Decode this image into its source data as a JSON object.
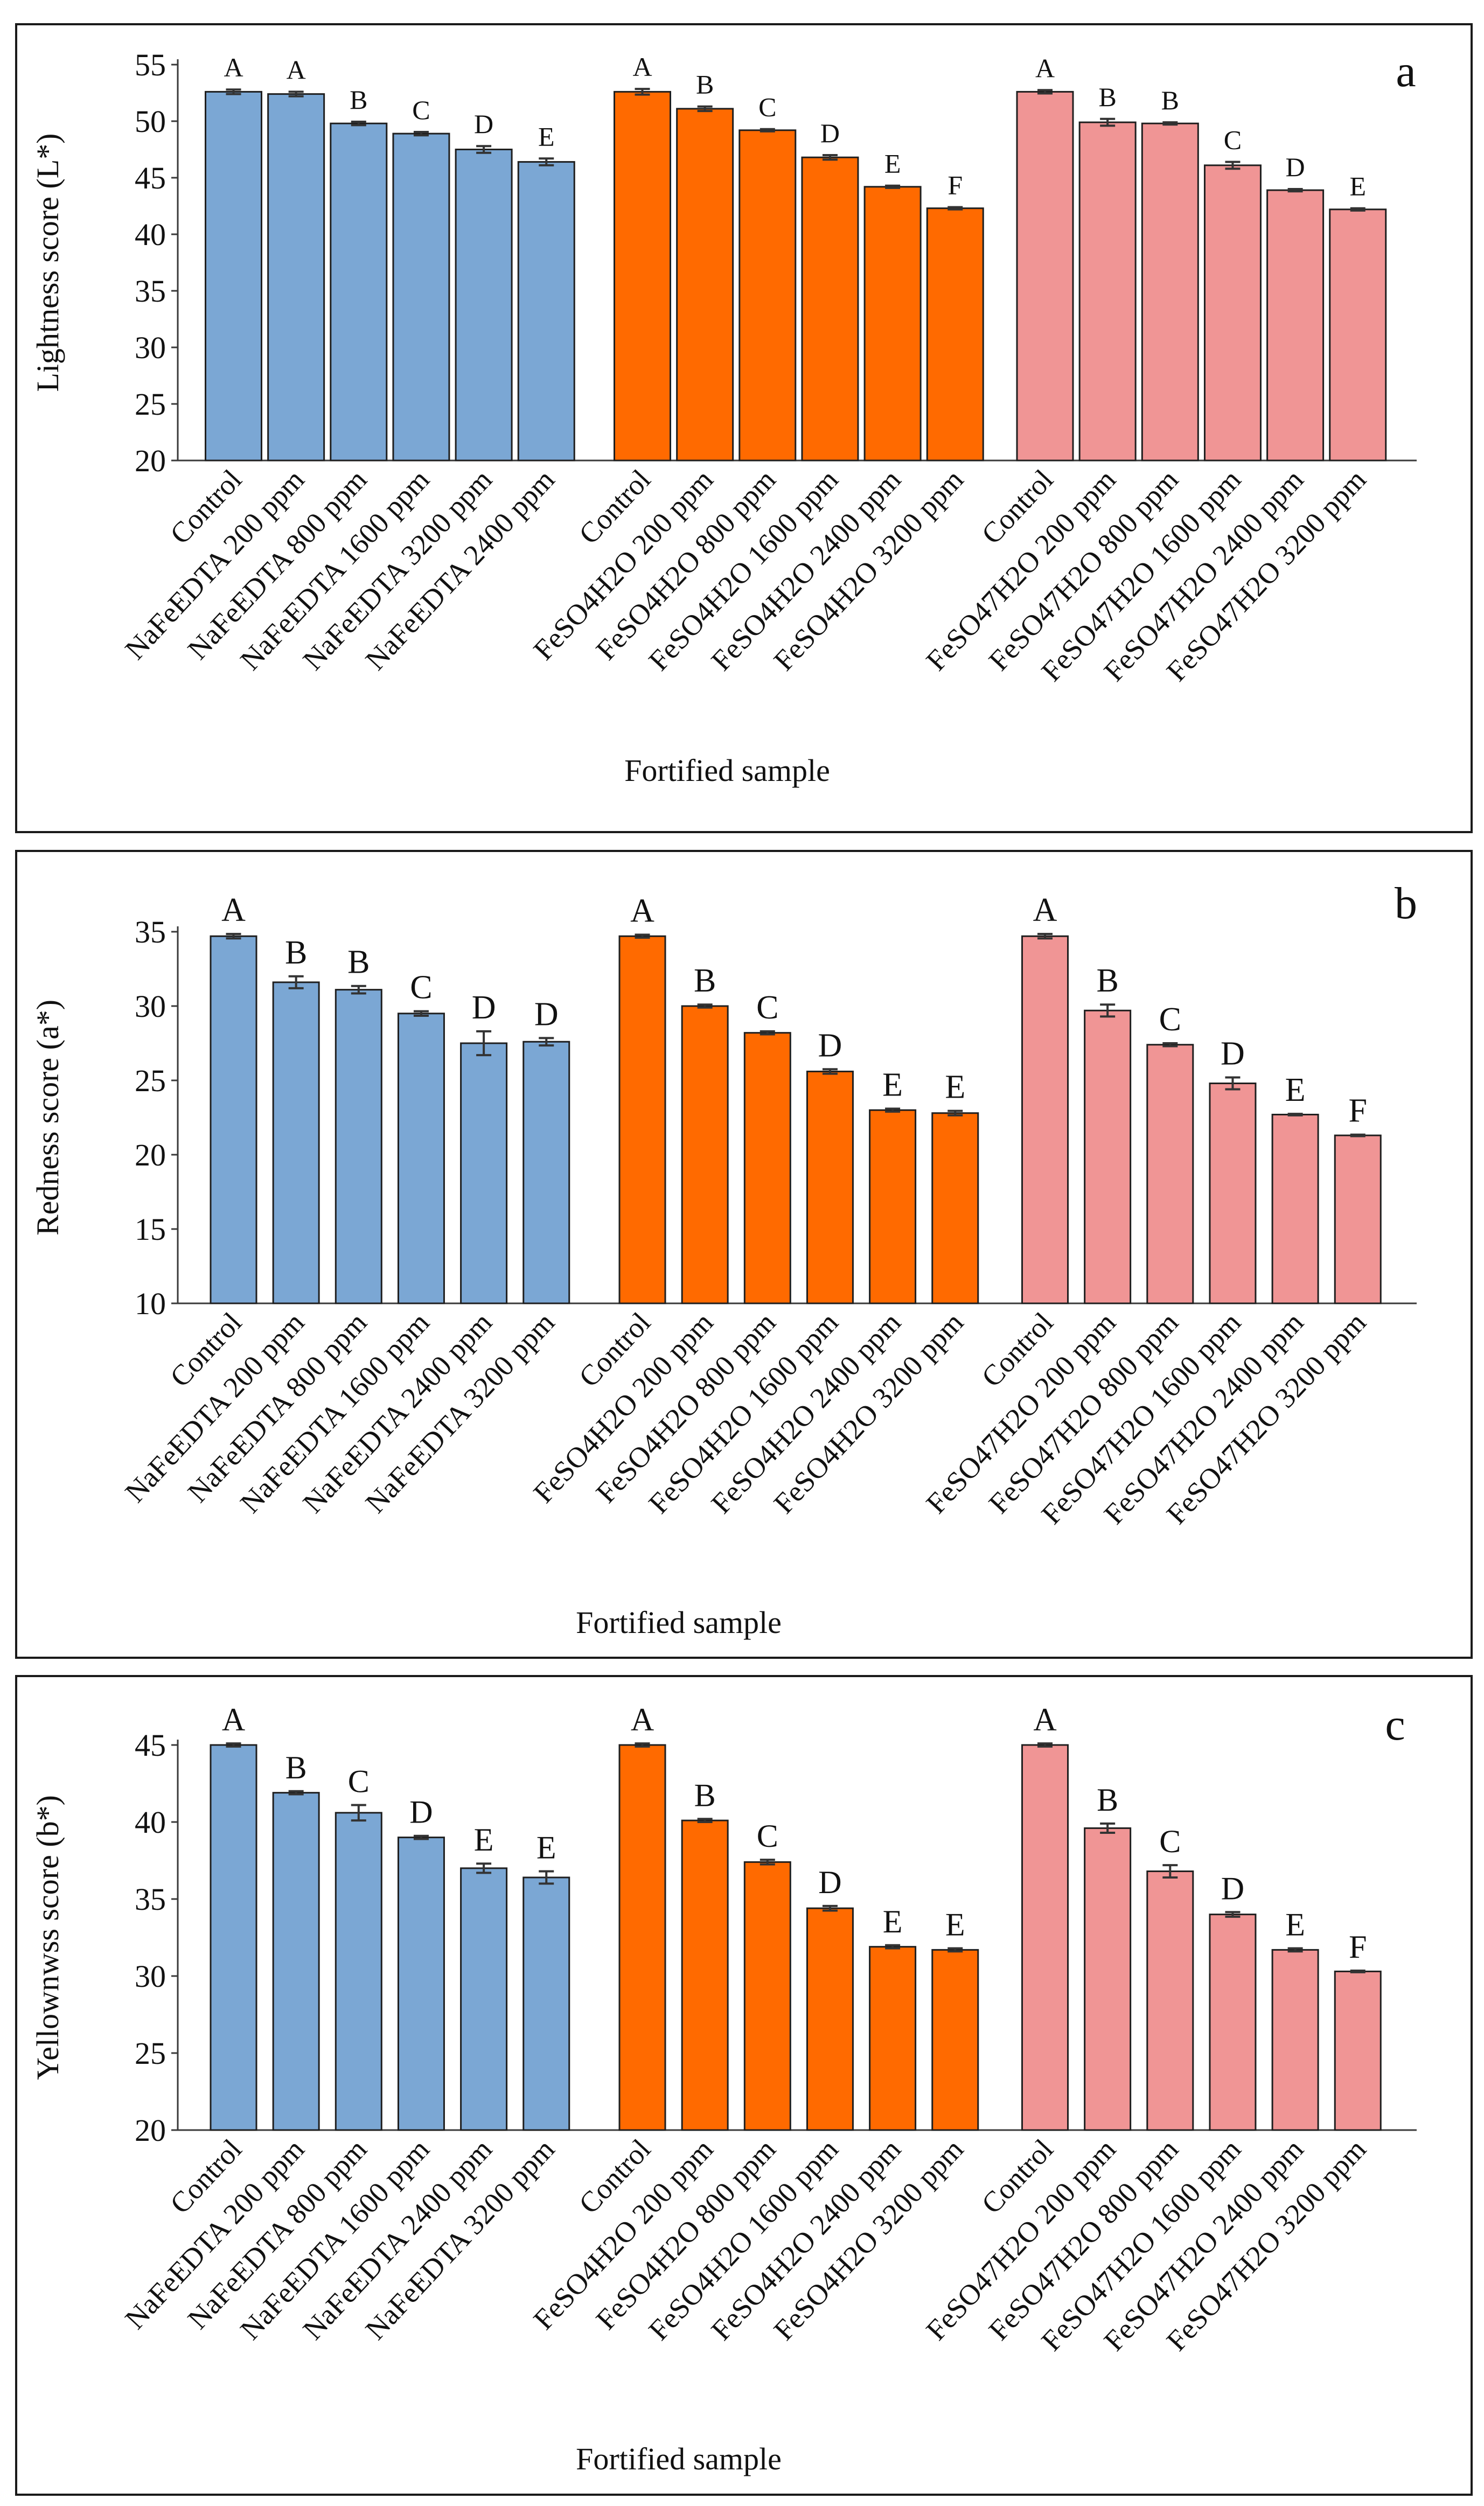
{
  "figure": {
    "xlabel_common": "Fortified sample"
  },
  "chart_data": [
    {
      "type": "bar",
      "panel": "a",
      "ylabel": "Lightness score (L*)",
      "xlabel": "Fortified sample",
      "ylim": [
        20,
        55
      ],
      "yticks": [
        20,
        25,
        30,
        35,
        40,
        45,
        50,
        55
      ],
      "groups": [
        {
          "name": "NaFeEDTA",
          "color": "#7ba7d4",
          "labels": [
            "Control",
            "NaFeEDTA 200 ppm",
            "NaFeEDTA 800 ppm",
            "NaFeEDTA 1600 ppm",
            "NaFeEDTA 3200 ppm",
            "NaFeEDTA 2400 ppm"
          ],
          "values": [
            52.6,
            52.4,
            49.8,
            48.9,
            47.5,
            46.4
          ],
          "errors": [
            0.2,
            0.2,
            0.15,
            0.15,
            0.3,
            0.3
          ],
          "sig": [
            "A",
            "A",
            "B",
            "C",
            "D",
            "E"
          ]
        },
        {
          "name": "FeSO4H2O",
          "color": "#ff6a00",
          "labels": [
            "Control",
            "FeSO4H2O 200 ppm",
            "FeSO4H2O 800 ppm",
            "FeSO4H2O 1600 ppm",
            "FeSO4H2O 2400 ppm",
            "FeSO4H2O 3200 ppm"
          ],
          "values": [
            52.6,
            51.1,
            49.2,
            46.8,
            44.2,
            42.3
          ],
          "errors": [
            0.25,
            0.2,
            0.1,
            0.2,
            0.1,
            0.1
          ],
          "sig": [
            "A",
            "B",
            "C",
            "D",
            "E",
            "F"
          ]
        },
        {
          "name": "FeSO47H2O",
          "color": "#f09595",
          "labels": [
            "Control",
            "FeSO47H2O 200 ppm",
            "FeSO47H2O 800 ppm",
            "FeSO47H2O 1600 ppm",
            "FeSO47H2O 2400 ppm",
            "FeSO47H2O 3200 ppm"
          ],
          "values": [
            52.6,
            49.9,
            49.8,
            46.1,
            43.9,
            42.2
          ],
          "errors": [
            0.15,
            0.3,
            0.1,
            0.3,
            0.1,
            0.1
          ],
          "sig": [
            "A",
            "B",
            "B",
            "C",
            "D",
            "E"
          ]
        }
      ]
    },
    {
      "type": "bar",
      "panel": "b",
      "ylabel": "Redness score (a*)",
      "xlabel": "Fortified sample",
      "ylim": [
        10,
        35
      ],
      "yticks": [
        10,
        15,
        20,
        25,
        30,
        35
      ],
      "groups": [
        {
          "name": "NaFeEDTA",
          "color": "#7ba7d4",
          "labels": [
            "Control",
            "NaFeEDTA 200 ppm",
            "NaFeEDTA 800 ppm",
            "NaFeEDTA 1600 ppm",
            "NaFeEDTA 2400 ppm",
            "NaFeEDTA 3200 ppm"
          ],
          "values": [
            34.7,
            31.6,
            31.1,
            29.5,
            27.5,
            27.6
          ],
          "errors": [
            0.15,
            0.4,
            0.25,
            0.15,
            0.8,
            0.25
          ],
          "sig": [
            "A",
            "B",
            "B",
            "C",
            "D",
            "D"
          ]
        },
        {
          "name": "FeSO4H2O",
          "color": "#ff6a00",
          "labels": [
            "Control",
            "FeSO4H2O 200 ppm",
            "FeSO4H2O 800 ppm",
            "FeSO4H2O 1600 ppm",
            "FeSO4H2O 2400 ppm",
            "FeSO4H2O 3200 ppm"
          ],
          "values": [
            34.7,
            30.0,
            28.2,
            25.6,
            23.0,
            22.8
          ],
          "errors": [
            0.1,
            0.1,
            0.1,
            0.15,
            0.1,
            0.15
          ],
          "sig": [
            "A",
            "B",
            "C",
            "D",
            "E",
            "E"
          ]
        },
        {
          "name": "FeSO47H2O",
          "color": "#f09595",
          "labels": [
            "Control",
            "FeSO47H2O 200 ppm",
            "FeSO47H2O 800 ppm",
            "FeSO47H2O 1600 ppm",
            "FeSO47H2O 2400 ppm",
            "FeSO47H2O 3200 ppm"
          ],
          "values": [
            34.7,
            29.7,
            27.4,
            24.8,
            22.7,
            21.3
          ],
          "errors": [
            0.15,
            0.4,
            0.1,
            0.4,
            0.05,
            0.05
          ],
          "sig": [
            "A",
            "B",
            "C",
            "D",
            "E",
            "F"
          ]
        }
      ]
    },
    {
      "type": "bar",
      "panel": "c",
      "ylabel": "Yellownwss score (b*)",
      "xlabel": "Fortified sample",
      "ylim": [
        20,
        45
      ],
      "yticks": [
        20,
        25,
        30,
        35,
        40,
        45
      ],
      "groups": [
        {
          "name": "NaFeEDTA",
          "color": "#7ba7d4",
          "labels": [
            "Control",
            "NaFeEDTA 200 ppm",
            "NaFeEDTA 800 ppm",
            "NaFeEDTA 1600 ppm",
            "NaFeEDTA 2400 ppm",
            "NaFeEDTA 3200 ppm"
          ],
          "values": [
            45.0,
            41.9,
            40.6,
            39.0,
            37.0,
            36.4
          ],
          "errors": [
            0.1,
            0.1,
            0.5,
            0.1,
            0.3,
            0.4
          ],
          "sig": [
            "A",
            "B",
            "C",
            "D",
            "E",
            "E"
          ]
        },
        {
          "name": "FeSO4H2O",
          "color": "#ff6a00",
          "labels": [
            "Control",
            "FeSO4H2O 200 ppm",
            "FeSO4H2O 800 ppm",
            "FeSO4H2O 1600 ppm",
            "FeSO4H2O 2400 ppm",
            "FeSO4H2O 3200 ppm"
          ],
          "values": [
            45.0,
            40.1,
            37.4,
            34.4,
            31.9,
            31.7
          ],
          "errors": [
            0.1,
            0.1,
            0.15,
            0.15,
            0.1,
            0.1
          ],
          "sig": [
            "A",
            "B",
            "C",
            "D",
            "E",
            "E"
          ]
        },
        {
          "name": "FeSO47H2O",
          "color": "#f09595",
          "labels": [
            "Control",
            "FeSO47H2O 200 ppm",
            "FeSO47H2O 800 ppm",
            "FeSO47H2O 1600 ppm",
            "FeSO47H2O 2400 ppm",
            "FeSO47H2O 3200 ppm"
          ],
          "values": [
            45.0,
            39.6,
            36.8,
            34.0,
            31.7,
            30.3
          ],
          "errors": [
            0.1,
            0.3,
            0.4,
            0.15,
            0.1,
            0.05
          ],
          "sig": [
            "A",
            "B",
            "C",
            "D",
            "E",
            "F"
          ]
        }
      ]
    }
  ]
}
